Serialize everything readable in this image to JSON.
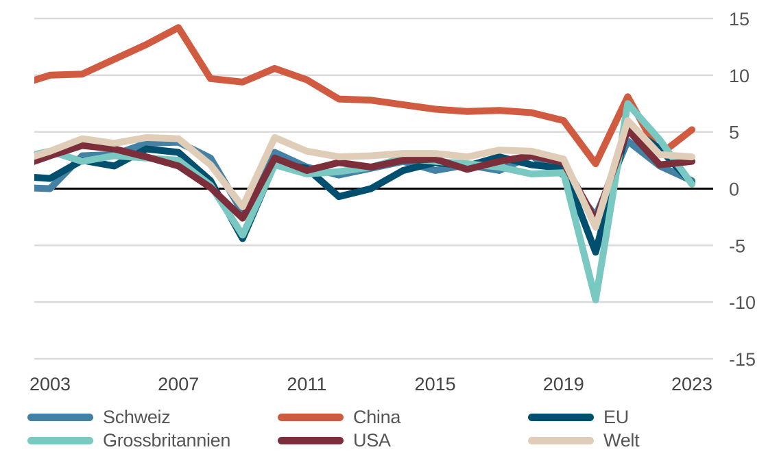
{
  "chart_data": {
    "type": "line",
    "title": "",
    "xlabel": "",
    "ylabel": "",
    "x": [
      2002,
      2003,
      2004,
      2005,
      2006,
      2007,
      2008,
      2009,
      2010,
      2011,
      2012,
      2013,
      2014,
      2015,
      2016,
      2017,
      2018,
      2019,
      2020,
      2021,
      2022,
      2023
    ],
    "xlim": [
      2002.5,
      2023.7
    ],
    "x_ticks": [
      "2003",
      "2007",
      "2011",
      "2015",
      "2019",
      "2023"
    ],
    "x_tick_values": [
      2003,
      2007,
      2011,
      2015,
      2019,
      2023
    ],
    "ylim": [
      -15,
      15
    ],
    "y_ticks": [
      "15",
      "10",
      "5",
      "0",
      "-5",
      "-10",
      "-15"
    ],
    "y_tick_values": [
      15,
      10,
      5,
      0,
      -5,
      -10,
      -15
    ],
    "y_axis_side": "right",
    "grid": true,
    "legend_position": "bottom",
    "series": [
      {
        "name": "Schweiz",
        "color": "#4381a5",
        "values": [
          0.1,
          0.0,
          2.9,
          3.0,
          4.0,
          4.1,
          2.7,
          -2.1,
          3.2,
          1.9,
          1.2,
          1.8,
          2.4,
          1.6,
          2.1,
          1.6,
          2.9,
          1.2,
          -2.4,
          4.2,
          2.0,
          0.7
        ]
      },
      {
        "name": "China",
        "color": "#d15b40",
        "values": [
          9.1,
          10.0,
          10.1,
          11.4,
          12.7,
          14.2,
          9.7,
          9.4,
          10.6,
          9.6,
          7.9,
          7.8,
          7.4,
          7.0,
          6.8,
          6.9,
          6.7,
          6.0,
          2.2,
          8.1,
          3.0,
          5.2
        ]
      },
      {
        "name": "EU",
        "color": "#004f6e",
        "values": [
          1.1,
          0.9,
          2.5,
          2.0,
          3.5,
          3.2,
          0.7,
          -4.4,
          2.2,
          1.8,
          -0.7,
          0.0,
          1.6,
          2.3,
          2.0,
          2.8,
          2.1,
          1.8,
          -5.6,
          5.5,
          3.5,
          0.5
        ]
      },
      {
        "name": "Grossbritannien",
        "color": "#79c8c2",
        "values": [
          2.7,
          3.3,
          2.4,
          2.9,
          2.7,
          2.5,
          0.3,
          -4.1,
          2.1,
          1.3,
          1.5,
          1.9,
          2.7,
          2.4,
          2.2,
          1.9,
          1.3,
          1.4,
          -9.8,
          7.5,
          4.3,
          0.4
        ]
      },
      {
        "name": "USA",
        "color": "#7c2f3a",
        "values": [
          1.9,
          2.9,
          3.8,
          3.5,
          2.8,
          2.0,
          0.1,
          -2.6,
          2.7,
          1.6,
          2.3,
          1.9,
          2.5,
          2.6,
          1.7,
          2.4,
          2.9,
          2.3,
          -2.8,
          5.2,
          2.1,
          2.4
        ]
      },
      {
        "name": "Welt",
        "color": "#dfcdb8",
        "values": [
          2.4,
          3.3,
          4.4,
          4.0,
          4.5,
          4.4,
          2.1,
          -1.6,
          4.5,
          3.3,
          2.8,
          2.9,
          3.1,
          3.1,
          2.8,
          3.4,
          3.3,
          2.6,
          -3.4,
          6.0,
          3.0,
          2.8
        ]
      }
    ],
    "draw_order": [
      "China",
      "Schweiz",
      "EU",
      "Grossbritannien",
      "USA",
      "Welt"
    ],
    "zero_line_color": "#000000",
    "grid_color": "#d9d9d9"
  },
  "legend": {
    "rows": [
      [
        {
          "label": "Schweiz",
          "color": "#4381a5"
        },
        {
          "label": "China",
          "color": "#d15b40"
        },
        {
          "label": "EU",
          "color": "#004f6e"
        }
      ],
      [
        {
          "label": "Grossbritannien",
          "color": "#79c8c2"
        },
        {
          "label": "USA",
          "color": "#7c2f3a"
        },
        {
          "label": "Welt",
          "color": "#dfcdb8"
        }
      ]
    ]
  }
}
